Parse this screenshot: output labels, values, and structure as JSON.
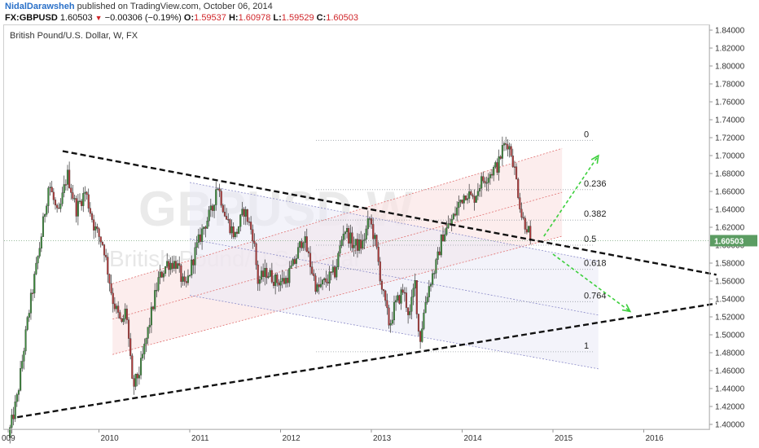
{
  "header": {
    "author": "NidalDarawsheh",
    "published": "published on TradingView.com, October 06, 2014",
    "symbol": "FX:GBPUSD",
    "last": "1.60503",
    "change": "−0.00306 (−0.19%)",
    "open_label": "O:",
    "open": "1.59537",
    "high_label": "H:",
    "high": "1.60978",
    "low_label": "L:",
    "low": "1.59529",
    "close_label": "C:",
    "close": "1.60503"
  },
  "chart_title": "British Pound/U.S. Dollar, W, FX",
  "watermark": {
    "symbol": "GBPUSD,W",
    "name": "British Pound/U.S. Dollar"
  },
  "price_badge": "1.60503",
  "colors": {
    "bull": "#3c8a3c",
    "bear": "#b03a3a",
    "badge": "#5b9c62",
    "fib_line": "#9aa0a6",
    "arrow": "#3ccf3c",
    "channel_fill": "#fbe3e3",
    "wedge_fill": "#e9e9f6"
  },
  "chart_data": {
    "type": "candlestick",
    "title": "British Pound/U.S. Dollar, W, FX",
    "x_ticks": [
      "009",
      "2010",
      "2011",
      "2012",
      "2013",
      "2014",
      "2015",
      "2016"
    ],
    "y_ticks": [
      "1.84000",
      "1.82000",
      "1.80000",
      "1.78000",
      "1.76000",
      "1.74000",
      "1.72000",
      "1.70000",
      "1.68000",
      "1.66000",
      "1.64000",
      "1.62000",
      "1.60000",
      "1.58000",
      "1.56000",
      "1.54000",
      "1.52000",
      "1.50000",
      "1.48000",
      "1.46000",
      "1.44000",
      "1.42000",
      "1.40000"
    ],
    "ylim": [
      1.395,
      1.845
    ],
    "xlim": [
      2009.0,
      2016.8
    ],
    "fib_levels": [
      {
        "label": "0",
        "price": 1.717
      },
      {
        "label": "0.236",
        "price": 1.662
      },
      {
        "label": "0.382",
        "price": 1.628
      },
      {
        "label": "0.5",
        "price": 1.6
      },
      {
        "label": "0.618",
        "price": 1.573
      },
      {
        "label": "0.764",
        "price": 1.537
      },
      {
        "label": "1",
        "price": 1.481
      }
    ],
    "last_price": 1.60503,
    "anchors": [
      [
        2009.0,
        1.385
      ],
      [
        2009.1,
        1.43
      ],
      [
        2009.22,
        1.52
      ],
      [
        2009.35,
        1.6
      ],
      [
        2009.45,
        1.67
      ],
      [
        2009.55,
        1.63
      ],
      [
        2009.65,
        1.68
      ],
      [
        2009.75,
        1.64
      ],
      [
        2009.85,
        1.66
      ],
      [
        2009.95,
        1.62
      ],
      [
        2010.05,
        1.6
      ],
      [
        2010.15,
        1.54
      ],
      [
        2010.25,
        1.51
      ],
      [
        2010.3,
        1.53
      ],
      [
        2010.37,
        1.44
      ],
      [
        2010.45,
        1.46
      ],
      [
        2010.55,
        1.51
      ],
      [
        2010.65,
        1.56
      ],
      [
        2010.75,
        1.58
      ],
      [
        2010.85,
        1.58
      ],
      [
        2010.95,
        1.55
      ],
      [
        2011.05,
        1.59
      ],
      [
        2011.15,
        1.62
      ],
      [
        2011.25,
        1.64
      ],
      [
        2011.3,
        1.67
      ],
      [
        2011.4,
        1.63
      ],
      [
        2011.5,
        1.61
      ],
      [
        2011.6,
        1.64
      ],
      [
        2011.7,
        1.61
      ],
      [
        2011.75,
        1.56
      ],
      [
        2011.85,
        1.57
      ],
      [
        2011.95,
        1.56
      ],
      [
        2012.05,
        1.56
      ],
      [
        2012.15,
        1.58
      ],
      [
        2012.25,
        1.61
      ],
      [
        2012.35,
        1.57
      ],
      [
        2012.4,
        1.55
      ],
      [
        2012.5,
        1.56
      ],
      [
        2012.6,
        1.57
      ],
      [
        2012.7,
        1.62
      ],
      [
        2012.8,
        1.6
      ],
      [
        2012.9,
        1.6
      ],
      [
        2012.98,
        1.63
      ],
      [
        2013.05,
        1.6
      ],
      [
        2013.12,
        1.55
      ],
      [
        2013.2,
        1.51
      ],
      [
        2013.25,
        1.53
      ],
      [
        2013.35,
        1.55
      ],
      [
        2013.42,
        1.52
      ],
      [
        2013.48,
        1.56
      ],
      [
        2013.53,
        1.49
      ],
      [
        2013.6,
        1.54
      ],
      [
        2013.65,
        1.56
      ],
      [
        2013.72,
        1.58
      ],
      [
        2013.78,
        1.61
      ],
      [
        2013.9,
        1.63
      ],
      [
        2013.98,
        1.65
      ],
      [
        2014.05,
        1.66
      ],
      [
        2014.12,
        1.65
      ],
      [
        2014.2,
        1.67
      ],
      [
        2014.3,
        1.68
      ],
      [
        2014.4,
        1.69
      ],
      [
        2014.45,
        1.71
      ],
      [
        2014.5,
        1.715
      ],
      [
        2014.55,
        1.7
      ],
      [
        2014.6,
        1.67
      ],
      [
        2014.66,
        1.63
      ],
      [
        2014.72,
        1.62
      ],
      [
        2014.76,
        1.605
      ]
    ],
    "lines": {
      "triangle_top": [
        [
          2009.6,
          1.705
        ],
        [
          2016.8,
          1.567
        ]
      ],
      "triangle_bottom": [
        [
          2009.1,
          1.408
        ],
        [
          2016.8,
          1.535
        ]
      ],
      "channel_lower": [
        [
          2010.15,
          1.478
        ],
        [
          2015.1,
          1.61
        ]
      ],
      "channel_upper": [
        [
          2010.15,
          1.557
        ],
        [
          2015.1,
          1.708
        ]
      ],
      "wedge_top": [
        [
          2011.0,
          1.67
        ],
        [
          2015.5,
          1.582
        ]
      ],
      "wedge_bottom": [
        [
          2011.0,
          1.544
        ],
        [
          2015.5,
          1.462
        ]
      ],
      "arrow_up": [
        [
          2014.9,
          1.61
        ],
        [
          2015.5,
          1.7
        ]
      ],
      "arrow_down": [
        [
          2015.0,
          1.59
        ],
        [
          2015.85,
          1.526
        ]
      ]
    }
  }
}
